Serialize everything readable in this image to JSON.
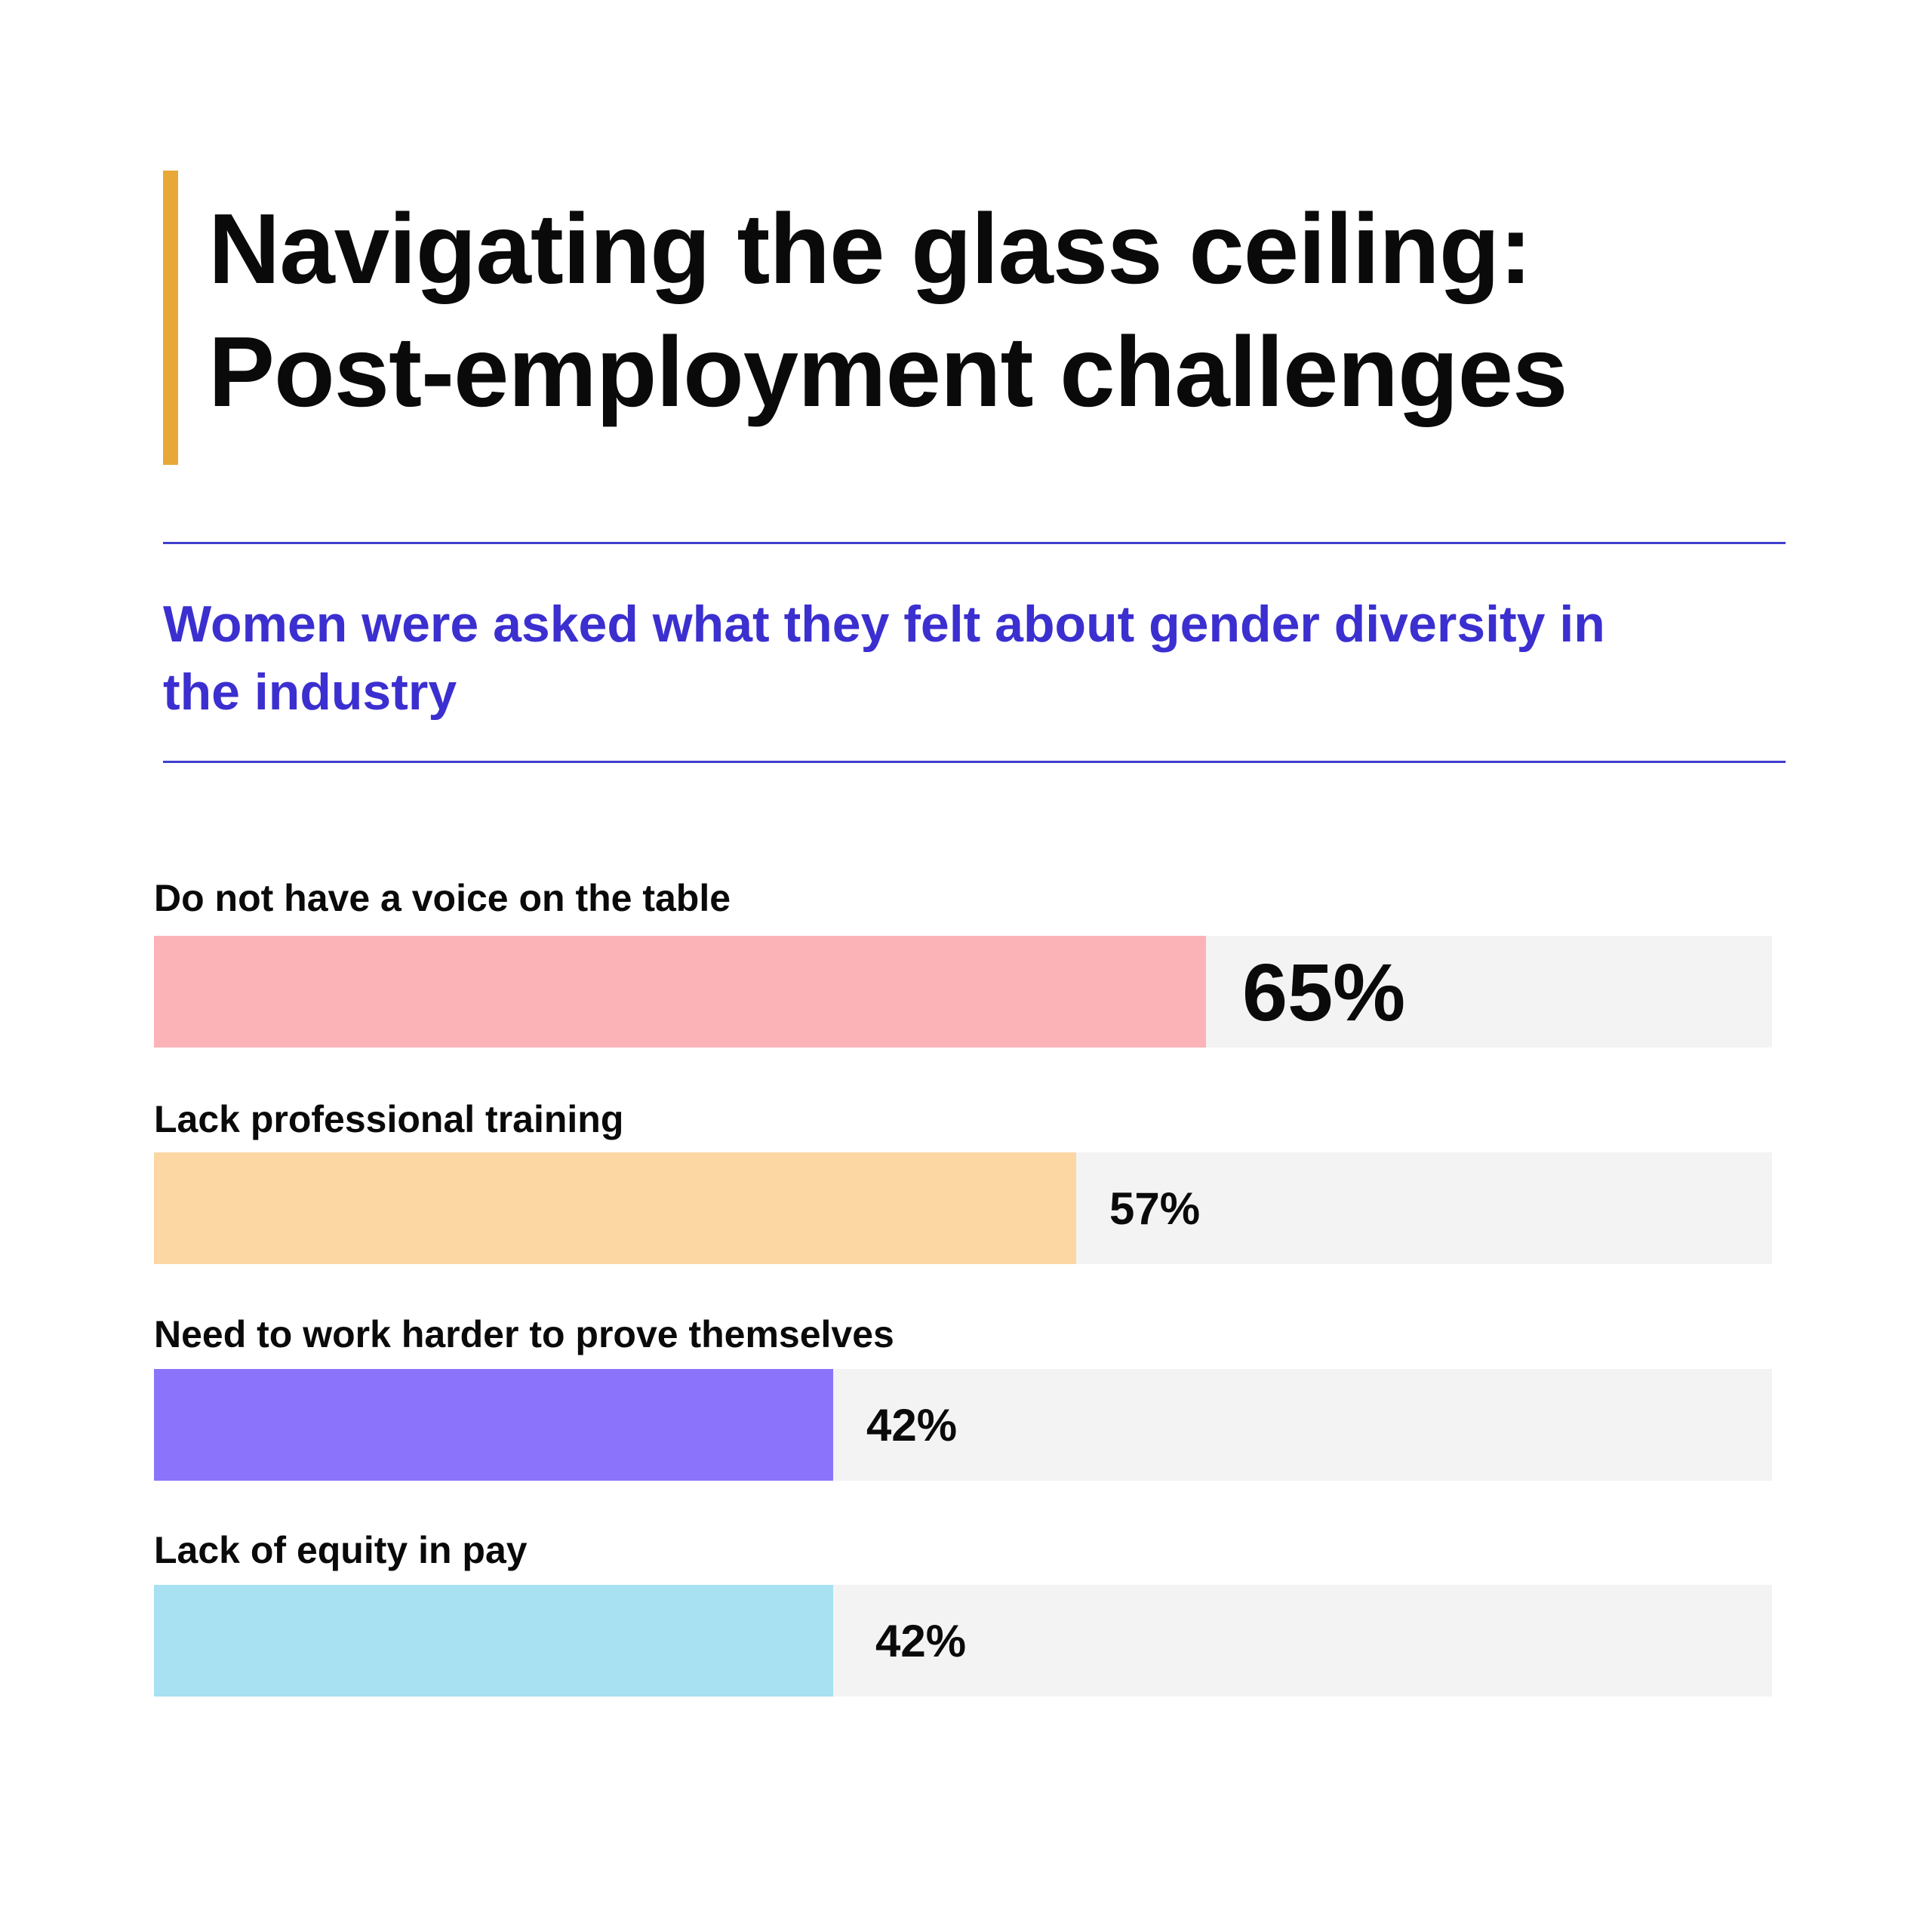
{
  "colors": {
    "accent": "#e8a838",
    "rule": "#3f3fcf",
    "subtitle": "#3b2fd0",
    "track": "#f3f3f3"
  },
  "header": {
    "title_lines": [
      "Navigating the glass ceiling:",
      "Post-employment challenges"
    ],
    "subtitle": "Women were asked what they felt about gender diversity in the industry"
  },
  "chart_data": {
    "type": "bar",
    "orientation": "horizontal",
    "title": "Navigating the glass ceiling: Post-employment challenges",
    "subtitle": "Women were asked what they felt about gender diversity in the industry",
    "categories": [
      "Do not have a voice on the table",
      "Lack professional training",
      "Need to work harder to prove themselves",
      "Lack of equity in pay"
    ],
    "values": [
      65,
      57,
      42,
      42
    ],
    "value_labels": [
      "65%",
      "57%",
      "42%",
      "42%"
    ],
    "bar_colors": [
      "#fcb3b8",
      "#fcd7a3",
      "#8b74fb",
      "#a8e1f2"
    ],
    "xlim": [
      0,
      100
    ],
    "grid": false,
    "legend": "none"
  }
}
